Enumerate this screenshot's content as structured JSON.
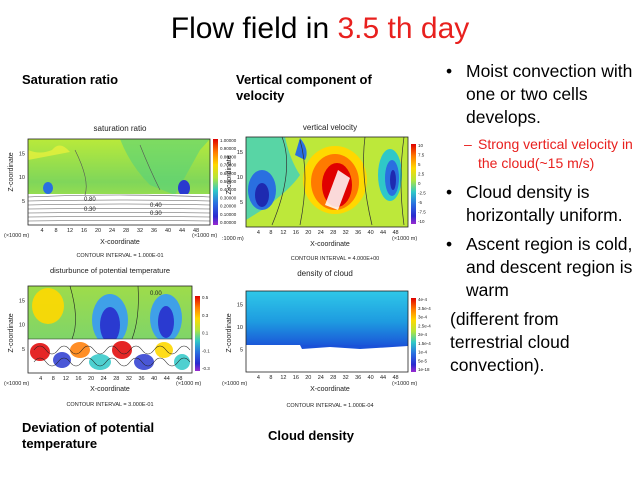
{
  "slide_title_main": "Flow field in ",
  "slide_title_highlight": "3.5 th day",
  "captions": {
    "saturation": "Saturation ratio",
    "vertical": "Vertical component of velocity",
    "deviation": "Deviation of potential temperature",
    "cloud": "Cloud density"
  },
  "panels": {
    "p1": {
      "title": "saturation ratio",
      "ylabel": "Z-coordinate",
      "xlabel": "X-coordinate",
      "xunit": "(×1000 m)",
      "yunit": "(×1000 m)",
      "footer": "CONTOUR INTERVAL = 1.000E-01",
      "contours": [
        "0.80",
        "0.40",
        "0.30",
        "0.30"
      ],
      "colorbar": [
        "1.00000",
        "0.90000",
        "0.80000",
        "0.70000",
        "0.60000",
        "0.50000",
        "0.40000",
        "0.30000",
        "0.20000",
        "0.10000",
        "0.00000"
      ]
    },
    "p2": {
      "title": "vertical velocity",
      "ylabel": "Z-coordinate",
      "xlabel": "X-coordinate",
      "xunit": "(×1000 m)",
      "yunit": ":1000 m)",
      "footer": "CONTOUR INTERVAL = 4.000E+00",
      "colorbar": [
        "10",
        "7.5",
        "5",
        "2.5",
        "0",
        "-2.5",
        "-5",
        "-7.5",
        "-10"
      ]
    },
    "p3": {
      "title": "disturbunce of potential temperature",
      "ylabel": "Z-coordinate",
      "xlabel": "X-coordinate",
      "xunit": "(×1000 m)",
      "yunit": "(×1000 m)",
      "footer": "CONTOUR INTERVAL = 3.000E-01",
      "contours": [
        "0.00"
      ],
      "colorbar": [
        "0.5",
        "0.3",
        "0.1",
        "-0.1",
        "-0.3"
      ]
    },
    "p4": {
      "title": "density of cloud",
      "ylabel": "Z-coordinate",
      "xlabel": "X-coordinate",
      "xunit": "(×1000 m)",
      "yunit": "(×1000 m)",
      "footer": "CONTOUR INTERVAL = 1.000E-04",
      "colorbar": [
        "4e-4",
        "3.5e-4",
        "3e-4",
        "2.5e-4",
        "2e-4",
        "1.5e-4",
        "1e-4",
        "5e-5",
        "1e-18"
      ]
    }
  },
  "x_ticks": [
    "4",
    "8",
    "12",
    "16",
    "20",
    "24",
    "28",
    "32",
    "36",
    "40",
    "44",
    "48"
  ],
  "y_ticks": [
    "5",
    "10",
    "15"
  ],
  "bullets": {
    "b1": "Moist convection with one or two cells develops.",
    "sub": "Strong vertical velocity in the cloud(~15 m/s)",
    "b2": "Cloud density is horizontally uniform.",
    "b3": "Ascent region is cold, and descent region is warm",
    "paren": "(different from terrestrial cloud convection)."
  }
}
